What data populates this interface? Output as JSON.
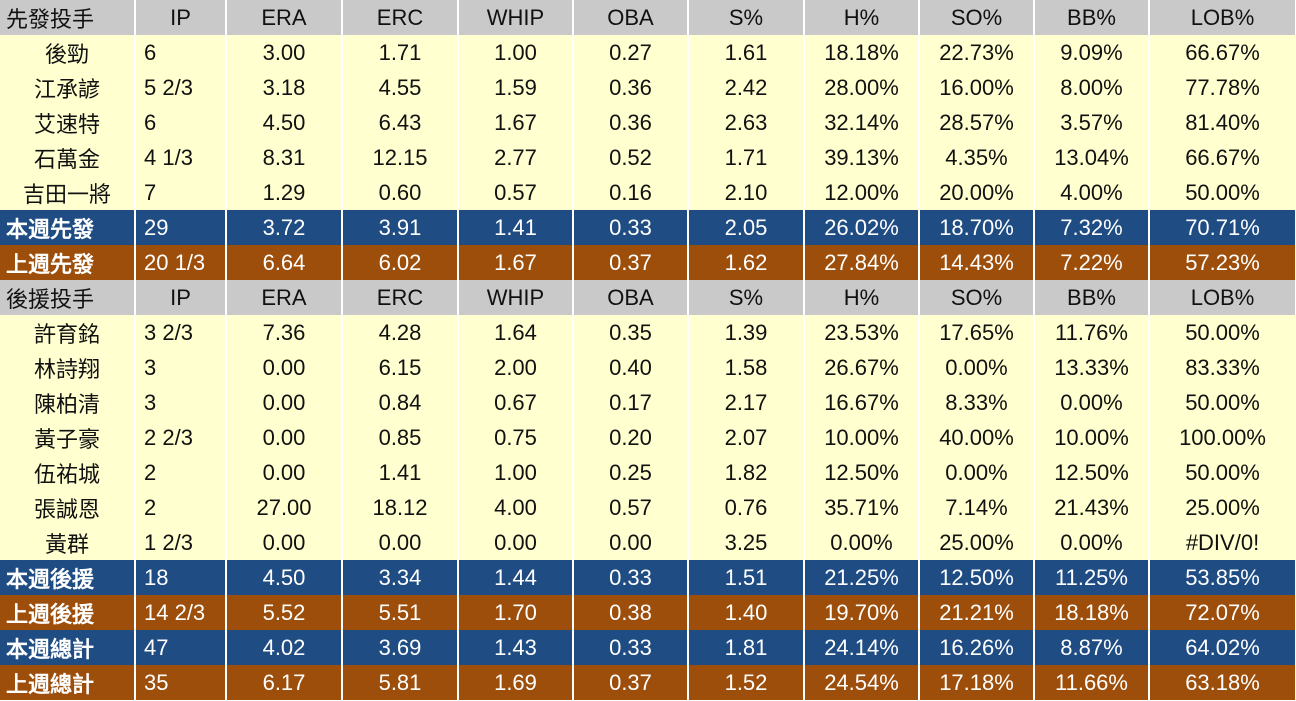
{
  "columns": [
    "IP",
    "ERA",
    "ERC",
    "WHIP",
    "OBA",
    "S%",
    "H%",
    "SO%",
    "BB%",
    "LOB%"
  ],
  "starters": {
    "header": "先發投手",
    "rows": [
      {
        "name": "後勁",
        "vals": [
          "6",
          "3.00",
          "1.71",
          "1.00",
          "0.27",
          "1.61",
          "18.18%",
          "22.73%",
          "9.09%",
          "66.67%"
        ]
      },
      {
        "name": "江承諺",
        "vals": [
          "5 2/3",
          "3.18",
          "4.55",
          "1.59",
          "0.36",
          "2.42",
          "28.00%",
          "16.00%",
          "8.00%",
          "77.78%"
        ]
      },
      {
        "name": "艾速特",
        "vals": [
          "6",
          "4.50",
          "6.43",
          "1.67",
          "0.36",
          "2.63",
          "32.14%",
          "28.57%",
          "3.57%",
          "81.40%"
        ]
      },
      {
        "name": "石萬金",
        "vals": [
          "4 1/3",
          "8.31",
          "12.15",
          "2.77",
          "0.52",
          "1.71",
          "39.13%",
          "4.35%",
          "13.04%",
          "66.67%"
        ]
      },
      {
        "name": "吉田一將",
        "vals": [
          "7",
          "1.29",
          "0.60",
          "0.57",
          "0.16",
          "2.10",
          "12.00%",
          "20.00%",
          "4.00%",
          "50.00%"
        ]
      }
    ],
    "this_week": {
      "name": "本週先發",
      "vals": [
        "29",
        "3.72",
        "3.91",
        "1.41",
        "0.33",
        "2.05",
        "26.02%",
        "18.70%",
        "7.32%",
        "70.71%"
      ]
    },
    "last_week": {
      "name": "上週先發",
      "vals": [
        "20 1/3",
        "6.64",
        "6.02",
        "1.67",
        "0.37",
        "1.62",
        "27.84%",
        "14.43%",
        "7.22%",
        "57.23%"
      ]
    }
  },
  "relievers": {
    "header": "後援投手",
    "rows": [
      {
        "name": "許育銘",
        "vals": [
          "3 2/3",
          "7.36",
          "4.28",
          "1.64",
          "0.35",
          "1.39",
          "23.53%",
          "17.65%",
          "11.76%",
          "50.00%"
        ]
      },
      {
        "name": "林詩翔",
        "vals": [
          "3",
          "0.00",
          "6.15",
          "2.00",
          "0.40",
          "1.58",
          "26.67%",
          "0.00%",
          "13.33%",
          "83.33%"
        ]
      },
      {
        "name": "陳柏清",
        "vals": [
          "3",
          "0.00",
          "0.84",
          "0.67",
          "0.17",
          "2.17",
          "16.67%",
          "8.33%",
          "0.00%",
          "50.00%"
        ]
      },
      {
        "name": "黃子豪",
        "vals": [
          "2 2/3",
          "0.00",
          "0.85",
          "0.75",
          "0.20",
          "2.07",
          "10.00%",
          "40.00%",
          "10.00%",
          "100.00%"
        ]
      },
      {
        "name": "伍祐城",
        "vals": [
          "2",
          "0.00",
          "1.41",
          "1.00",
          "0.25",
          "1.82",
          "12.50%",
          "0.00%",
          "12.50%",
          "50.00%"
        ]
      },
      {
        "name": "張誠恩",
        "vals": [
          "2",
          "27.00",
          "18.12",
          "4.00",
          "0.57",
          "0.76",
          "35.71%",
          "7.14%",
          "21.43%",
          "25.00%"
        ]
      },
      {
        "name": "黃群",
        "vals": [
          "1 2/3",
          "0.00",
          "0.00",
          "0.00",
          "0.00",
          "3.25",
          "0.00%",
          "25.00%",
          "0.00%",
          "#DIV/0!"
        ]
      }
    ],
    "this_week": {
      "name": "本週後援",
      "vals": [
        "18",
        "4.50",
        "3.34",
        "1.44",
        "0.33",
        "1.51",
        "21.25%",
        "12.50%",
        "11.25%",
        "53.85%"
      ]
    },
    "last_week": {
      "name": "上週後援",
      "vals": [
        "14 2/3",
        "5.52",
        "5.51",
        "1.70",
        "0.38",
        "1.40",
        "19.70%",
        "21.21%",
        "18.18%",
        "72.07%"
      ]
    }
  },
  "totals": {
    "this_week": {
      "name": "本週總計",
      "vals": [
        "47",
        "4.02",
        "3.69",
        "1.43",
        "0.33",
        "1.81",
        "24.14%",
        "16.26%",
        "8.87%",
        "64.02%"
      ]
    },
    "last_week": {
      "name": "上週總計",
      "vals": [
        "35",
        "6.17",
        "5.81",
        "1.69",
        "0.37",
        "1.52",
        "24.54%",
        "17.18%",
        "11.66%",
        "63.18%"
      ]
    }
  },
  "colors": {
    "header_bg": "#c9c9c9",
    "row_bg": "#ffffcf",
    "this_week_bg": "#1f4c82",
    "last_week_bg": "#9c4e0a"
  }
}
